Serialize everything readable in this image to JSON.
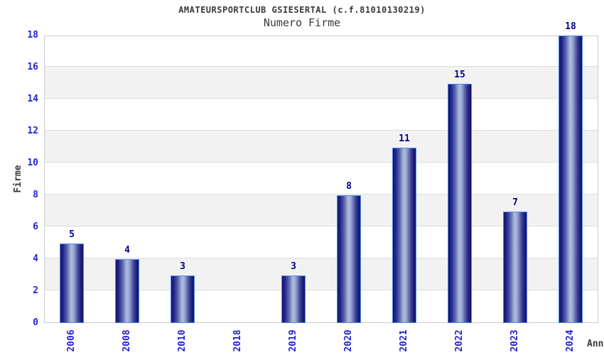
{
  "chart_data": {
    "type": "bar",
    "title": "AMATEURSPORTCLUB GSIESERTAL (c.f.81010130219)",
    "subtitle": "Numero Firme",
    "xlabel": "Anno",
    "ylabel": "Firme",
    "categories": [
      "2006",
      "2008",
      "2010",
      "2018",
      "2019",
      "2020",
      "2021",
      "2022",
      "2023",
      "2024"
    ],
    "values": [
      5,
      4,
      3,
      0,
      3,
      8,
      11,
      15,
      7,
      18
    ],
    "ylim": [
      0,
      18
    ],
    "ytick_step": 2,
    "yticks": [
      0,
      2,
      4,
      6,
      8,
      10,
      12,
      14,
      16,
      18
    ],
    "grid": "horizontal",
    "legend": "none",
    "colors": {
      "bar_dark": "#15156b",
      "bar_mid": "#24248c",
      "bar_light": "#b0bcde",
      "bar_border": "#4e8fea",
      "value_label": "#00008b",
      "tick_label": "#2424cc",
      "band": "#f2f2f2",
      "gridline": "#dddddd",
      "plot_border": "#cccccc",
      "title_color": "#3a3a3a"
    }
  }
}
